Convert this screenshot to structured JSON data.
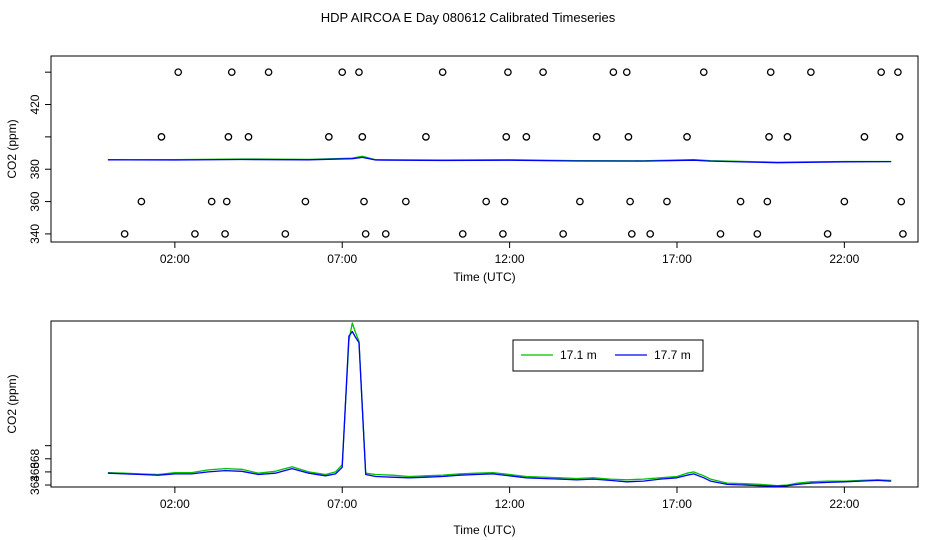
{
  "title": "HDP AIRCOA E  Day 080612  Calibrated Timeseries",
  "colors": {
    "series_17_1": "#00c000",
    "series_17_7": "#0000ff",
    "markers": "#000000"
  },
  "chart_data": [
    {
      "type": "line",
      "panel": "top",
      "xlabel": "Time (UTC)",
      "ylabel": "CO2 (ppm)",
      "xlim": [
        -1.7,
        24.2
      ],
      "ylim": [
        335,
        450
      ],
      "x_ticks": [
        2,
        7,
        12,
        17,
        22
      ],
      "x_tick_labels": [
        "02:00",
        "07:00",
        "12:00",
        "17:00",
        "22:00"
      ],
      "y_ticks": [
        340,
        360,
        380,
        400,
        420,
        440
      ],
      "y_tick_labels": [
        "340",
        "360",
        "380",
        "",
        "420",
        ""
      ],
      "series": [
        {
          "name": "17.1 m",
          "x": [
            0,
            2,
            4,
            6,
            7.3,
            7.6,
            8,
            10,
            12,
            14,
            16,
            17.5,
            18,
            20,
            22,
            23.4
          ],
          "y": [
            385.8,
            385.9,
            386.3,
            386.1,
            386.8,
            388.0,
            385.9,
            385.7,
            385.8,
            385.3,
            385.2,
            385.9,
            385.3,
            384.3,
            384.8,
            384.8
          ]
        },
        {
          "name": "17.7 m",
          "x": [
            0,
            2,
            4,
            6,
            7.3,
            7.6,
            8,
            10,
            12,
            14,
            16,
            17.5,
            18,
            20,
            22,
            23.4
          ],
          "y": [
            385.8,
            385.7,
            386.0,
            385.8,
            386.5,
            387.3,
            385.7,
            385.4,
            385.6,
            385.1,
            385.0,
            385.6,
            385.0,
            384.0,
            384.6,
            384.7
          ]
        }
      ],
      "calibration_points": {
        "x": [
          0.5,
          1.0,
          1.6,
          2.1,
          2.6,
          3.1,
          3.5,
          3.55,
          3.6,
          3.7,
          4.2,
          4.8,
          5.3,
          5.9,
          6.6,
          7.0,
          7.5,
          7.6,
          7.65,
          7.7,
          8.3,
          8.9,
          9.5,
          10.0,
          10.6,
          11.3,
          11.8,
          11.85,
          11.9,
          11.95,
          12.5,
          13.0,
          13.6,
          14.1,
          14.6,
          15.1,
          15.5,
          15.55,
          15.6,
          15.65,
          16.2,
          16.7,
          17.3,
          17.8,
          18.3,
          18.9,
          19.4,
          19.7,
          19.75,
          19.8,
          20.3,
          21.0,
          21.5,
          22.0,
          22.6,
          23.1,
          23.6,
          23.65,
          23.7,
          23.75
        ],
        "y": [
          340,
          360,
          400,
          440,
          340,
          360,
          340,
          360,
          400,
          440,
          400,
          440,
          340,
          360,
          400,
          440,
          440,
          400,
          360,
          340,
          340,
          360,
          400,
          440,
          340,
          360,
          340,
          360,
          400,
          440,
          400,
          440,
          340,
          360,
          400,
          440,
          440,
          400,
          360,
          340,
          340,
          360,
          400,
          440,
          340,
          360,
          340,
          360,
          400,
          440,
          400,
          440,
          340,
          360,
          400,
          440,
          440,
          400,
          360,
          340
        ]
      }
    },
    {
      "type": "line",
      "panel": "bottom",
      "xlabel": "Time (UTC)",
      "ylabel": "CO2 (ppm)",
      "xlim": [
        -1.7,
        24.2
      ],
      "ylim": [
        363.7,
        389.0
      ],
      "x_ticks": [
        2,
        7,
        12,
        17,
        22
      ],
      "x_tick_labels": [
        "02:00",
        "07:00",
        "12:00",
        "17:00",
        "22:00"
      ],
      "y_ticks": [
        364,
        366,
        368,
        370
      ],
      "y_tick_labels": [
        "364",
        "366",
        "368",
        ""
      ],
      "legend": {
        "position": "top-right",
        "entries": [
          "17.1 m",
          "17.7 m"
        ]
      },
      "series": [
        {
          "name": "17.1 m",
          "x": [
            0.0,
            0.5,
            1.0,
            1.5,
            2.0,
            2.5,
            3.0,
            3.5,
            4.0,
            4.5,
            5.0,
            5.5,
            6.0,
            6.5,
            6.8,
            7.0,
            7.2,
            7.3,
            7.4,
            7.5,
            7.7,
            8.0,
            8.5,
            9.0,
            9.5,
            10.0,
            10.5,
            11.0,
            11.5,
            12.0,
            12.5,
            13.0,
            13.5,
            14.0,
            14.5,
            15.0,
            15.5,
            16.0,
            16.5,
            17.0,
            17.3,
            17.5,
            17.8,
            18.0,
            18.5,
            19.0,
            19.5,
            20.0,
            20.3,
            20.6,
            21.0,
            21.5,
            22.0,
            22.5,
            23.0,
            23.4
          ],
          "y": [
            365.9,
            365.8,
            365.7,
            365.6,
            365.9,
            365.9,
            366.3,
            366.5,
            366.4,
            365.8,
            366.1,
            366.8,
            366.0,
            365.6,
            366.0,
            367.1,
            386.0,
            388.7,
            387.2,
            385.9,
            365.8,
            365.6,
            365.5,
            365.3,
            365.4,
            365.5,
            365.7,
            365.8,
            365.9,
            365.6,
            365.3,
            365.2,
            365.1,
            365.0,
            365.1,
            364.9,
            364.8,
            364.9,
            365.1,
            365.3,
            365.8,
            366.0,
            365.4,
            364.9,
            364.3,
            364.2,
            364.1,
            363.9,
            364.0,
            364.3,
            364.5,
            364.6,
            364.6,
            364.7,
            364.8,
            364.7
          ]
        },
        {
          "name": "17.7 m",
          "x": [
            0.0,
            0.5,
            1.0,
            1.5,
            2.0,
            2.5,
            3.0,
            3.5,
            4.0,
            4.5,
            5.0,
            5.5,
            6.0,
            6.5,
            6.8,
            7.0,
            7.2,
            7.3,
            7.4,
            7.5,
            7.7,
            8.0,
            8.5,
            9.0,
            9.5,
            10.0,
            10.5,
            11.0,
            11.5,
            12.0,
            12.5,
            13.0,
            13.5,
            14.0,
            14.5,
            15.0,
            15.5,
            16.0,
            16.5,
            17.0,
            17.3,
            17.5,
            17.8,
            18.0,
            18.5,
            19.0,
            19.5,
            20.0,
            20.3,
            20.6,
            21.0,
            21.5,
            22.0,
            22.5,
            23.0,
            23.4
          ],
          "y": [
            365.8,
            365.7,
            365.6,
            365.5,
            365.7,
            365.7,
            366.0,
            366.2,
            366.1,
            365.6,
            365.8,
            366.5,
            365.8,
            365.4,
            365.7,
            366.7,
            386.7,
            387.4,
            386.5,
            385.7,
            365.6,
            365.3,
            365.2,
            365.1,
            365.2,
            365.3,
            365.5,
            365.6,
            365.7,
            365.4,
            365.1,
            365.0,
            364.9,
            364.8,
            364.9,
            364.7,
            364.5,
            364.6,
            364.9,
            365.1,
            365.5,
            365.7,
            365.1,
            364.6,
            364.1,
            364.0,
            363.9,
            363.8,
            363.9,
            364.1,
            364.3,
            364.4,
            364.5,
            364.6,
            364.7,
            364.6
          ]
        }
      ]
    }
  ]
}
